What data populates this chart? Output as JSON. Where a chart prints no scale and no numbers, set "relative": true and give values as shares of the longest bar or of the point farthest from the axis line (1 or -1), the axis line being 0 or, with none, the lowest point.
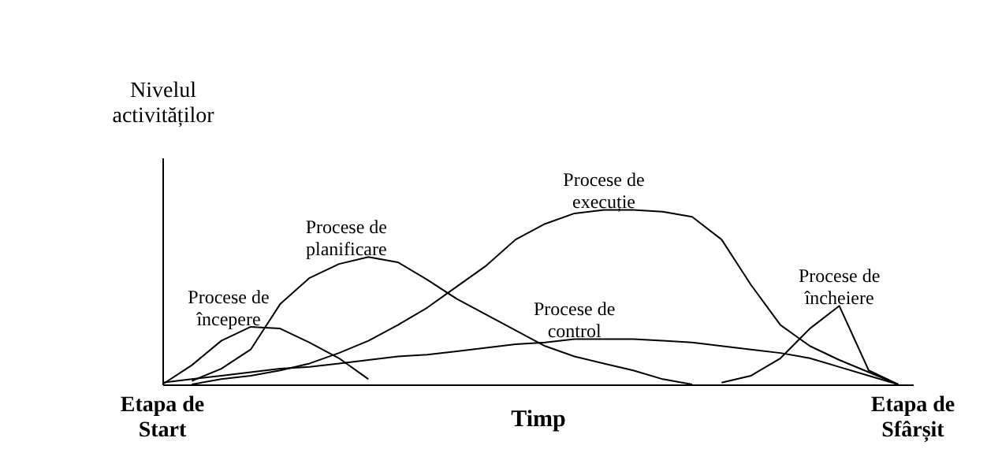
{
  "chart_data": {
    "type": "line",
    "relative": true,
    "xlabel": "Timp",
    "ylabel": "Nivelul\nactivităților",
    "annotations": [
      "Etapa de\nStart",
      "Etapa de\nSfârșit"
    ],
    "categories": [
      null,
      null,
      null,
      null,
      null,
      null,
      null,
      null,
      null,
      null,
      null,
      null,
      null,
      null,
      null,
      null,
      null,
      null,
      null,
      null,
      null,
      null,
      null,
      null,
      null,
      null
    ],
    "marker": "none",
    "line_style": "solid",
    "series": [
      {
        "name": "Procese de\nîncepere",
        "color": "#000000",
        "values": [
          0,
          0.11,
          0.25,
          0.33,
          0.32,
          0.24,
          0.15,
          0.03,
          null,
          null,
          null,
          null,
          null,
          null,
          null,
          null,
          null,
          null,
          null,
          null,
          null,
          null,
          null,
          null,
          null,
          null
        ]
      },
      {
        "name": "Procese de\nplanificare",
        "color": "#000000",
        "values": [
          null,
          0.02,
          0.09,
          0.2,
          0.46,
          0.61,
          0.69,
          0.73,
          0.7,
          0.6,
          0.49,
          0.4,
          0.31,
          0.22,
          0.16,
          0.12,
          0.08,
          0.03,
          0,
          null,
          null,
          null,
          null,
          null,
          null,
          null
        ]
      },
      {
        "name": "Procese de\nexecuție",
        "color": "#000000",
        "values": [
          null,
          0,
          0.03,
          0.05,
          0.08,
          0.12,
          0.18,
          0.25,
          0.34,
          0.44,
          0.56,
          0.68,
          0.83,
          0.92,
          0.98,
          1.0,
          1.0,
          0.99,
          0.96,
          0.83,
          0.57,
          0.34,
          0.22,
          0.14,
          0.07,
          0
        ]
      },
      {
        "name": "Procese de\ncontrol",
        "color": "#000000",
        "values": [
          0.01,
          0.03,
          0.05,
          0.07,
          0.09,
          0.1,
          0.12,
          0.14,
          0.16,
          0.17,
          0.19,
          0.21,
          0.23,
          0.24,
          0.26,
          0.26,
          0.26,
          0.25,
          0.24,
          0.22,
          0.2,
          0.18,
          0.15,
          0.1,
          0.05,
          0
        ]
      },
      {
        "name": "Procese de\nîncheiere",
        "color": "#000000",
        "values": [
          null,
          null,
          null,
          null,
          null,
          null,
          null,
          null,
          null,
          null,
          null,
          null,
          null,
          null,
          null,
          null,
          null,
          null,
          null,
          0.01,
          0.05,
          0.15,
          0.32,
          0.45,
          0.08,
          0
        ]
      }
    ]
  }
}
